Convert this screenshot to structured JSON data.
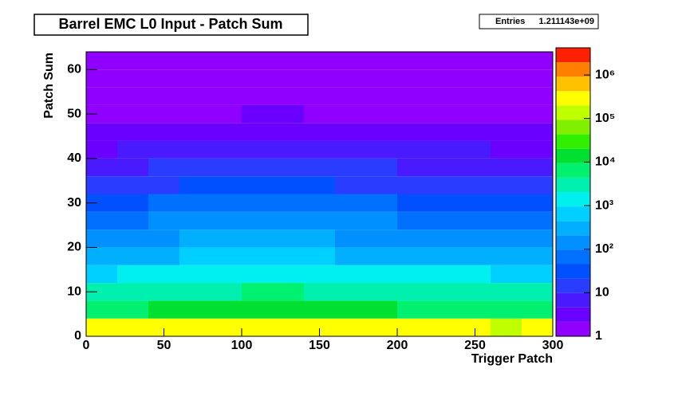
{
  "chart_data": {
    "type": "heatmap",
    "title": "Barrel EMC L0 Input - Patch Sum",
    "stats": {
      "label": "Entries",
      "value": "1.211143e+09"
    },
    "x_label": "Trigger Patch",
    "y_label": "Patch Sum",
    "xlim": [
      0,
      300
    ],
    "xticks": [
      0,
      50,
      100,
      150,
      200,
      250,
      300
    ],
    "ylim": [
      0,
      64
    ],
    "yticks": [
      0,
      10,
      20,
      30,
      40,
      50,
      60
    ],
    "zlim": [
      1,
      4200000
    ],
    "zscale": "log",
    "zticks": [
      1,
      10,
      {
        "value": 100,
        "label": "10²"
      },
      {
        "value": 1000,
        "label": "10³"
      },
      {
        "value": 10000,
        "label": "10⁴"
      },
      {
        "value": 100000,
        "label": "10⁵"
      },
      {
        "value": 1000000,
        "label": "10⁶"
      }
    ],
    "palette": [
      "#8f00ff",
      "#6a00ff",
      "#4a1aff",
      "#2a3cff",
      "#0050ff",
      "#0070ff",
      "#0090ff",
      "#00b0ff",
      "#00d0ff",
      "#00f0f0",
      "#00f0b0",
      "#00f070",
      "#00e030",
      "#30f000",
      "#80f000",
      "#c0ff00",
      "#ffff00",
      "#ffc000",
      "#ff8000",
      "#ff2000"
    ],
    "xbins": [
      0,
      20,
      40,
      60,
      80,
      100,
      120,
      140,
      160,
      180,
      200,
      220,
      240,
      260,
      280,
      300
    ],
    "ybins": [
      0,
      4,
      8,
      12,
      16,
      20,
      24,
      28,
      32,
      36,
      40,
      44,
      48,
      52,
      56,
      60,
      64
    ],
    "z": [
      [
        200000,
        200000,
        200000,
        200000,
        200000,
        200000,
        200000,
        200000,
        200000,
        200000,
        200000,
        200000,
        200000,
        150000,
        200000
      ],
      [
        8000,
        9000,
        10000,
        11000,
        11000,
        12000,
        12000,
        11000,
        10000,
        10000,
        9000,
        9000,
        9000,
        7000,
        8000
      ],
      [
        2500,
        3000,
        3500,
        4000,
        4000,
        4500,
        4500,
        4000,
        3500,
        3500,
        3000,
        3000,
        3000,
        2500,
        2500
      ],
      [
        800,
        1000,
        1200,
        1300,
        1300,
        1500,
        1500,
        1300,
        1200,
        1200,
        1000,
        1000,
        1000,
        800,
        800
      ],
      [
        300,
        350,
        400,
        450,
        450,
        550,
        550,
        450,
        400,
        400,
        350,
        350,
        350,
        300,
        300
      ],
      [
        150,
        170,
        200,
        220,
        220,
        260,
        260,
        220,
        200,
        200,
        170,
        170,
        170,
        150,
        150
      ],
      [
        70,
        80,
        100,
        110,
        110,
        130,
        130,
        110,
        100,
        100,
        80,
        80,
        80,
        70,
        70
      ],
      [
        35,
        40,
        50,
        55,
        55,
        60,
        60,
        55,
        50,
        50,
        40,
        40,
        40,
        35,
        35
      ],
      [
        15,
        18,
        20,
        22,
        22,
        25,
        25,
        22,
        20,
        20,
        18,
        18,
        18,
        15,
        15
      ],
      [
        8,
        9,
        10,
        11,
        11,
        12,
        12,
        11,
        10,
        10,
        9,
        9,
        9,
        8,
        8
      ],
      [
        4,
        5,
        5,
        6,
        6,
        6,
        6,
        6,
        5,
        5,
        5,
        5,
        5,
        4,
        4
      ],
      [
        2.5,
        3,
        3,
        3,
        3,
        3.5,
        3.5,
        3,
        3,
        3,
        3,
        3,
        3,
        2.5,
        2.5
      ],
      [
        1.8,
        2,
        2,
        2,
        2,
        2.2,
        2.2,
        2,
        2,
        2,
        2,
        2,
        2,
        1.8,
        1.8
      ],
      [
        1.4,
        1.5,
        1.5,
        1.5,
        1.5,
        1.6,
        1.6,
        1.5,
        1.5,
        1.5,
        1.5,
        1.5,
        1.5,
        1.4,
        1.4
      ],
      [
        1.1,
        1.2,
        1.2,
        1.2,
        1.2,
        1.3,
        1.3,
        1.2,
        1.2,
        1.2,
        1.2,
        1.2,
        1.2,
        1.1,
        1.1
      ],
      [
        1,
        1,
        1,
        1,
        1,
        1,
        1,
        1,
        1,
        1,
        1,
        1,
        1,
        1,
        1
      ]
    ]
  }
}
